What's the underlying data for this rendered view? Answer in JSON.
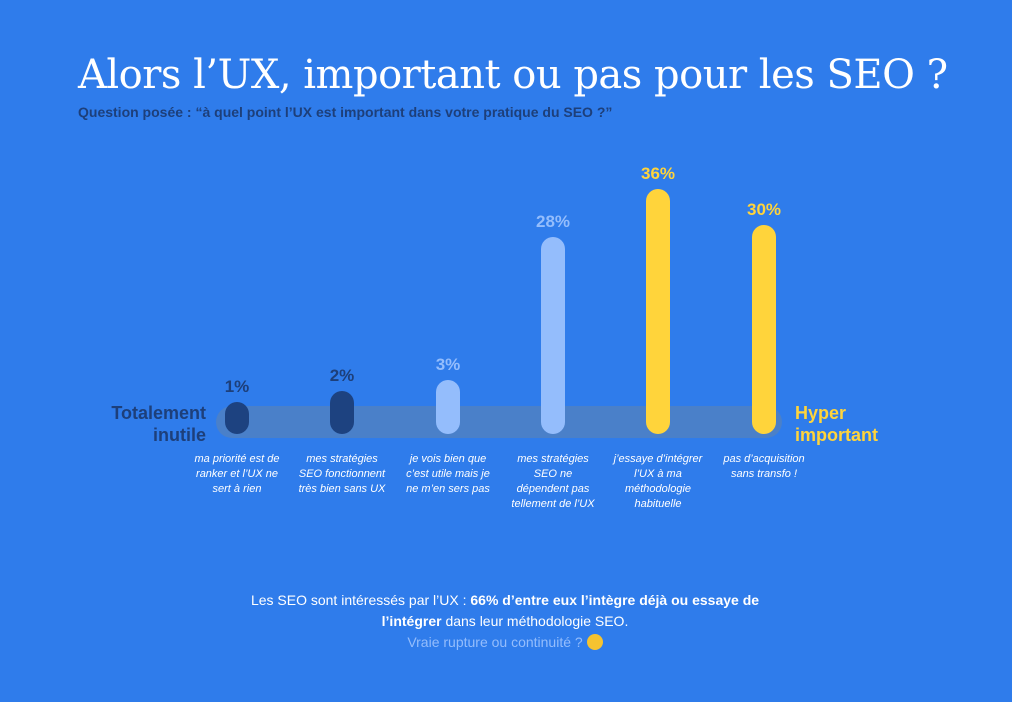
{
  "chart_data": {
    "type": "bar",
    "title": "Alors l’UX, important ou pas pour les SEO ?",
    "subtitle": "Question posée : “à quel point l’UX est important dans votre pratique du SEO ?”",
    "categories": [
      "ma priorité est de ranker et l’UX ne sert à rien",
      "mes stratégies SEO fonctionnent très bien sans UX",
      "je vois bien que c’est utile mais je ne m’en sers pas",
      "mes stratégies SEO ne dépendent pas tellement de l’UX",
      "j’essaye d’intégrer l’UX à ma méthodologie habituelle",
      "pas d’acquisition sans transfo !"
    ],
    "values": [
      1,
      2,
      3,
      28,
      36,
      30
    ],
    "labels": [
      "1%",
      "2%",
      "3%",
      "28%",
      "36%",
      "30%"
    ],
    "colors": [
      "#1d4280",
      "#1d4280",
      "#94bdfc",
      "#94bdfc",
      "#ffd43b",
      "#ffd43b"
    ],
    "label_colors": [
      "#1d3f7a",
      "#1d3f7a",
      "#94bdfc",
      "#94bdfc",
      "#ffd43b",
      "#ffd43b"
    ],
    "scale_left": "Totalement inutile",
    "scale_right": "Hyper important"
  },
  "footer": {
    "part1": "Les SEO sont intéressés par l’UX : ",
    "bold": "66% d’entre eux l’intègre déjà ou essaye de l’intégrer",
    "part2": " dans leur méthodologie SEO.",
    "question": "Vraie rupture ou continuité ?"
  }
}
